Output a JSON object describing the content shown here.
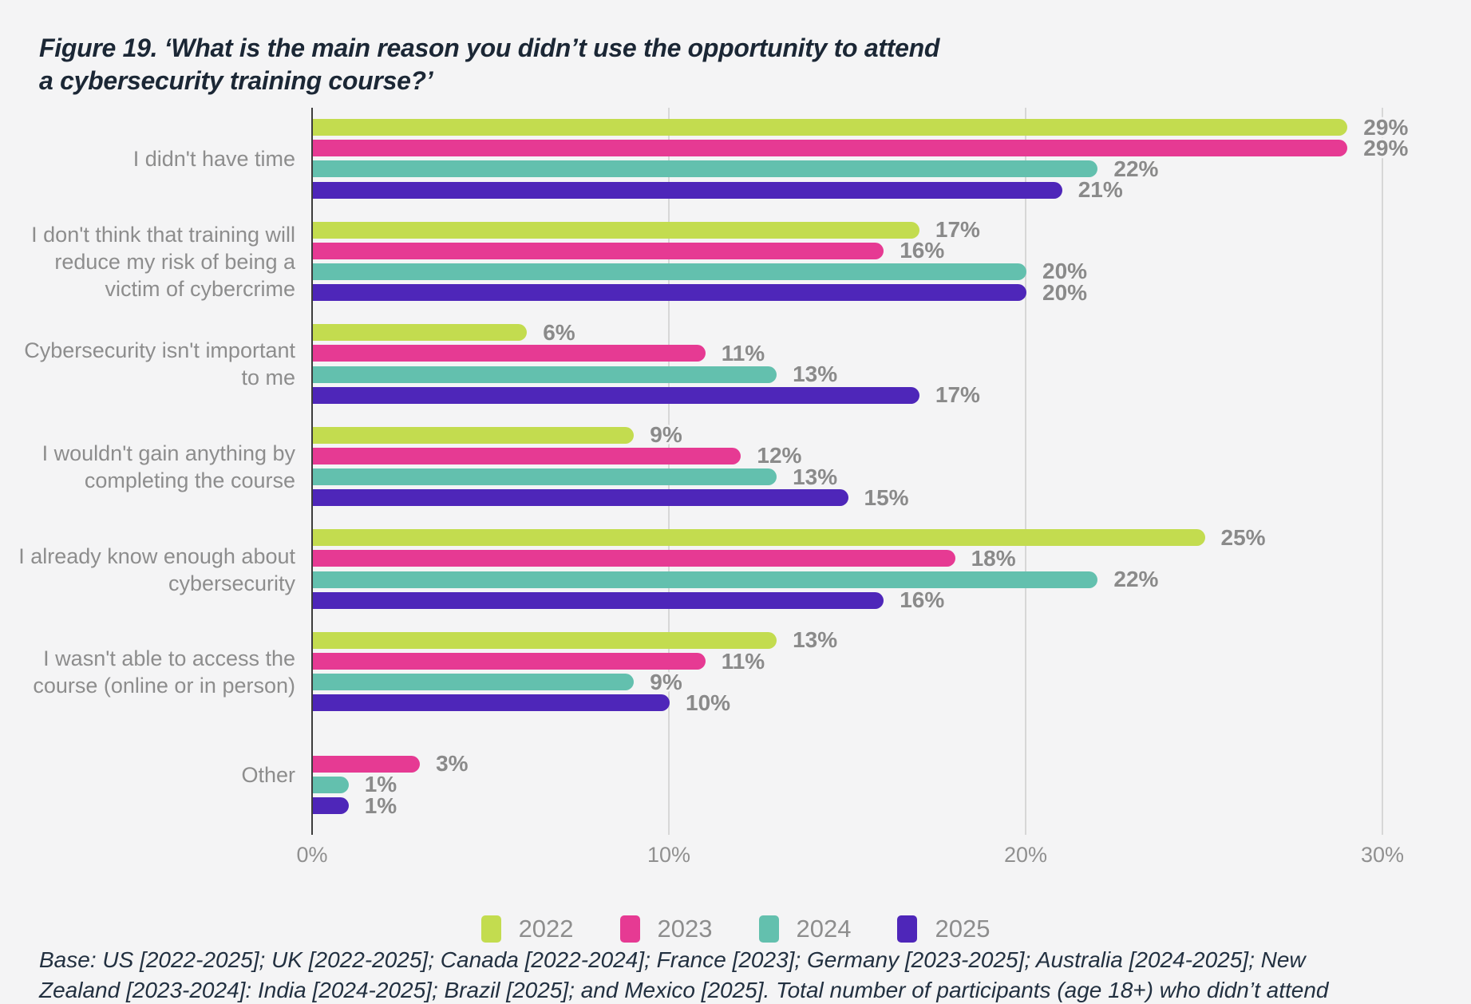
{
  "title": {
    "lines": [
      "Figure 19. ‘What is the main reason you didn’t use the opportunity to attend",
      "a cybersecurity training course?’"
    ]
  },
  "chart_data": {
    "type": "bar",
    "orientation": "horizontal",
    "title": "Figure 19. ‘What is the main reason you didn’t use the opportunity to attend a cybersecurity training course?’",
    "categories": [
      "I didn't have time",
      "I don't think that training will reduce my risk of being a victim of cybercrime",
      "Cybersecurity isn't important to me",
      "I wouldn't gain anything by completing the course",
      "I already know enough about cybersecurity",
      "I wasn't able to access the course (online or in person)",
      "Other"
    ],
    "series": [
      {
        "name": "2022",
        "color": "#c3dc4f",
        "values": [
          29,
          17,
          6,
          9,
          25,
          13,
          null
        ]
      },
      {
        "name": "2023",
        "color": "#e63a93",
        "values": [
          29,
          16,
          11,
          12,
          18,
          11,
          3
        ]
      },
      {
        "name": "2024",
        "color": "#63c0ae",
        "values": [
          22,
          20,
          13,
          13,
          22,
          9,
          1
        ]
      },
      {
        "name": "2025",
        "color": "#4e26b9",
        "values": [
          21,
          20,
          17,
          15,
          16,
          10,
          1
        ]
      }
    ],
    "value_suffix": "%",
    "xlim": [
      0,
      30
    ],
    "x_ticks": [
      {
        "label": "0%",
        "value": 0
      },
      {
        "label": "10%",
        "value": 10
      },
      {
        "label": "20%",
        "value": 20
      },
      {
        "label": "30%",
        "value": 30
      }
    ],
    "grid": "vertical",
    "legend_position": "bottom"
  },
  "footer": {
    "lines": [
      "Base: US [2022-2025]; UK [2022-2025]; Canada [2022-2024]; France [2023]; Germany [2023-2025]; Australia [2024-2025]; New",
      "Zealand [2023-2024]: India [2024-2025]; Brazil [2025]; and Mexico [2025]. Total number of participants (age 18+) who didn’t attend"
    ]
  }
}
